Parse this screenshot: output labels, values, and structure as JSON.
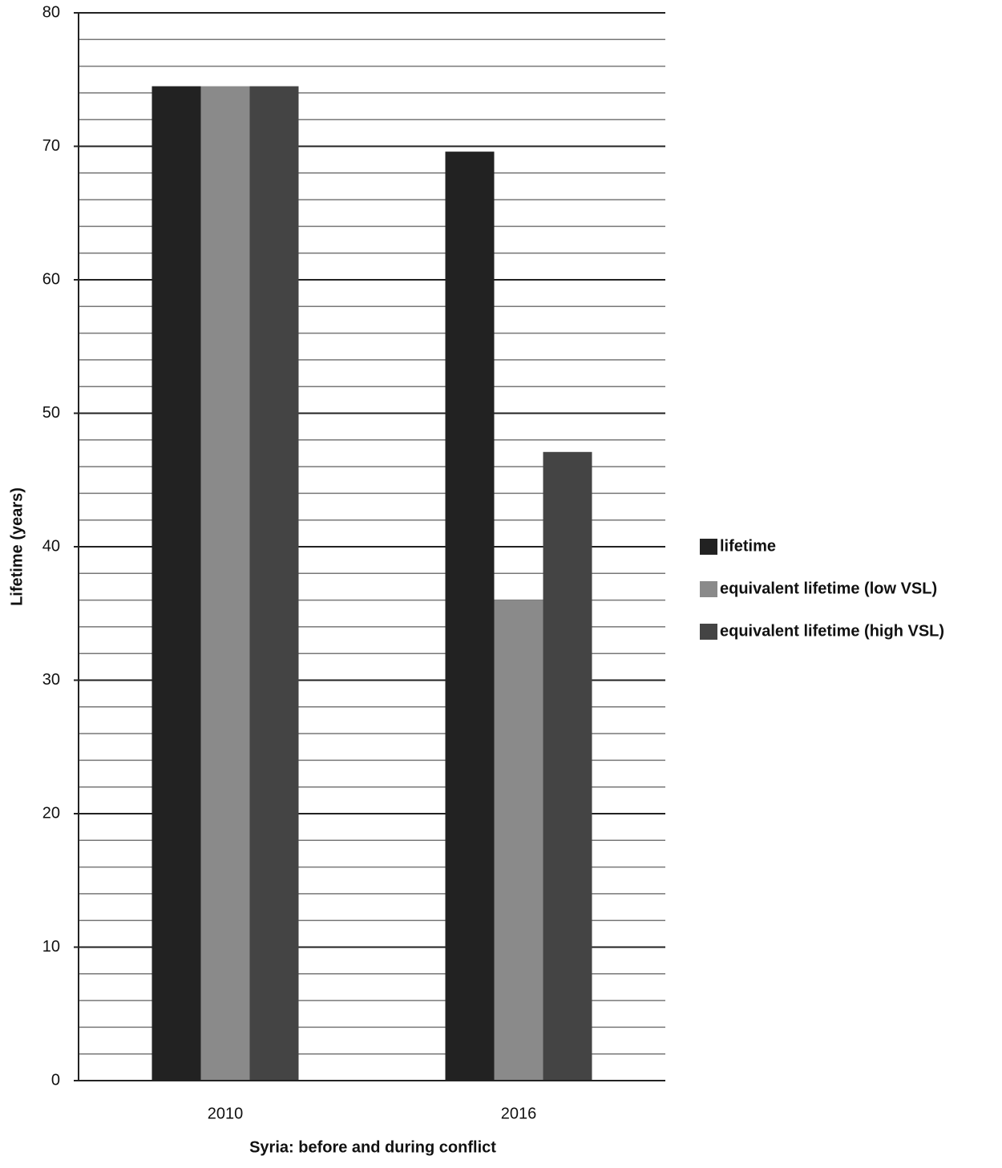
{
  "chart_data": {
    "type": "bar",
    "categories": [
      "2010",
      "2016"
    ],
    "series": [
      {
        "name": "lifetime",
        "color": "#222222",
        "values": [
          74.5,
          69.6
        ]
      },
      {
        "name": "equivalent lifetime (low VSL)",
        "color": "#8a8a8a",
        "values": [
          74.5,
          36.0
        ]
      },
      {
        "name": "equivalent lifetime (high VSL)",
        "color": "#444444",
        "values": [
          74.5,
          47.1
        ]
      }
    ],
    "x_label": "Syria: before and during conflict",
    "y_label": "Lifetime (years)",
    "ylim": [
      0,
      80
    ],
    "yticks": [
      0,
      10,
      20,
      30,
      40,
      50,
      60,
      70,
      80
    ],
    "minor_yticks": [
      2,
      4,
      6,
      8,
      12,
      14,
      16,
      18,
      22,
      24,
      26,
      28,
      32,
      34,
      36,
      38,
      42,
      44,
      46,
      48,
      52,
      54,
      56,
      58,
      62,
      64,
      66,
      68,
      72,
      74,
      76,
      78
    ],
    "grid": true,
    "legend": "right"
  }
}
